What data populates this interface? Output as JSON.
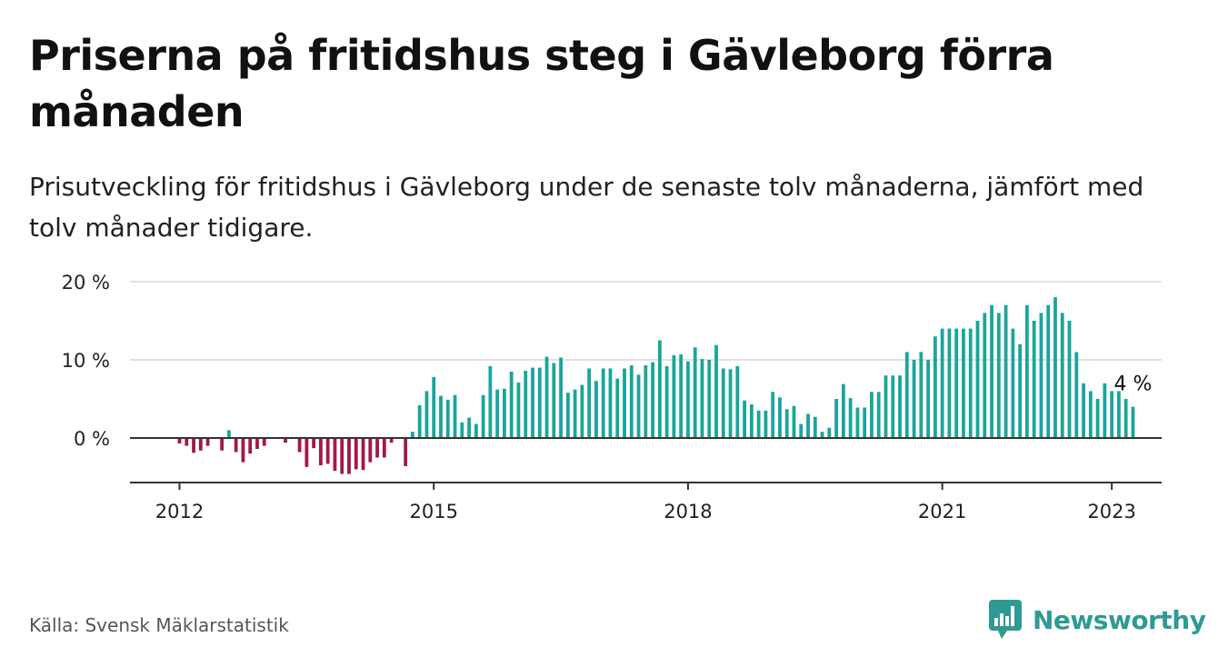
{
  "title": "Priserna på fritidshus steg i Gävleborg förra månaden",
  "subtitle": "Prisutveckling för fritidshus i Gävleborg under de senaste tolv månaderna, jämfört med tolv månader tidigare.",
  "source": "Källa: Svensk Mäklarstatistik",
  "brand": {
    "name": "Newsworthy",
    "icon": "newsworthy-logo-icon"
  },
  "colors": {
    "positive": "#1aa59c",
    "negative": "#a3184a",
    "grid": "#d9d9d9",
    "axis": "#333333"
  },
  "chart_data": {
    "type": "bar",
    "unit": "%",
    "ylim": [
      -5,
      20
    ],
    "yticks": [
      {
        "value": 0,
        "label": "0 %"
      },
      {
        "value": 10,
        "label": "10 %"
      },
      {
        "value": 20,
        "label": "20 %"
      }
    ],
    "xticks": [
      {
        "index": 0,
        "label": "2012"
      },
      {
        "index": 36,
        "label": "2015"
      },
      {
        "index": 72,
        "label": "2018"
      },
      {
        "index": 108,
        "label": "2021"
      },
      {
        "index": 132,
        "label": "2023"
      }
    ],
    "grid": true,
    "last_label": "4 %",
    "series": [
      {
        "values": [
          -0.7,
          -1.0,
          -1.9,
          -1.6,
          -1.0,
          0,
          -1.6,
          1.0,
          -1.8,
          -3.1,
          -2.0,
          -1.4,
          -1.0,
          0,
          0,
          -0.6,
          0,
          -1.8,
          -3.7,
          -1.3,
          -3.5,
          -3.3,
          -4.2,
          -4.6,
          -4.6,
          -4.0,
          -4.1,
          -3.1,
          -2.5,
          -2.5,
          -0.6,
          0,
          -3.6,
          0.8,
          4.2,
          6.0,
          7.8,
          5.4,
          4.9,
          5.5,
          2.0,
          2.6,
          1.8,
          5.5,
          9.2,
          6.2,
          6.3,
          8.5,
          7.1,
          8.6,
          9.0,
          9.0,
          10.4,
          9.6,
          10.3,
          5.8,
          6.2,
          6.8,
          8.9,
          7.3,
          8.9,
          8.9,
          7.6,
          8.9,
          9.3,
          8.1,
          9.3,
          9.7,
          12.5,
          9.2,
          10.6,
          10.7,
          9.8,
          11.6,
          10.1,
          10.0,
          11.9,
          8.9,
          8.8,
          9.2,
          4.8,
          4.3,
          3.5,
          3.5,
          5.9,
          5.2,
          3.7,
          4.1,
          1.8,
          3.1,
          2.7,
          0.8,
          1.3,
          5.0,
          6.9,
          5.1,
          3.9,
          3.9,
          5.9,
          5.9,
          8.0,
          8.0,
          8.0,
          11.0,
          10.0,
          11.0,
          10.0,
          13.0,
          14.0,
          14.0,
          14.0,
          14.0,
          14.0,
          15.0,
          16.0,
          17.0,
          16.0,
          17.0,
          14.0,
          12.0,
          17.0,
          15.0,
          16.0,
          17.0,
          18.0,
          16.0,
          15.0,
          11.0,
          7.0,
          6.0,
          5.0,
          7.0,
          6.0,
          6.0,
          5.0,
          4.0
        ]
      }
    ]
  }
}
